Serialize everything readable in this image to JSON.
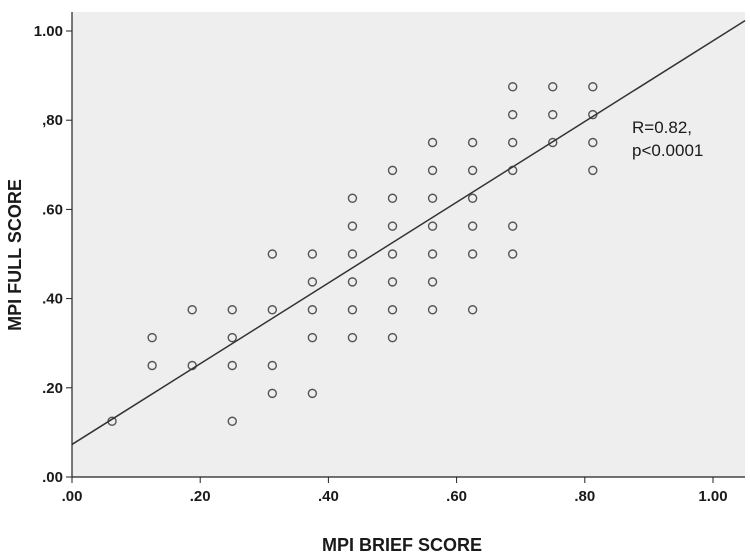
{
  "chart_data": {
    "type": "scatter",
    "title": "",
    "xlabel": "MPI BRIEF SCORE",
    "ylabel": "MPI FULL  SCORE",
    "xlim": [
      0,
      1.05
    ],
    "ylim": [
      0,
      1.0
    ],
    "x_ticks": [
      {
        "value": 0.0,
        "label": ".00"
      },
      {
        "value": 0.2,
        "label": ".20"
      },
      {
        "value": 0.4,
        "label": ".40"
      },
      {
        "value": 0.6,
        "label": ".60"
      },
      {
        "value": 0.8,
        "label": ".80"
      },
      {
        "value": 1.0,
        "label": "1.00"
      }
    ],
    "y_ticks": [
      {
        "value": 0.0,
        "label": ".00"
      },
      {
        "value": 0.2,
        "label": ".20"
      },
      {
        "value": 0.4,
        "label": ".40"
      },
      {
        "value": 0.6,
        "label": ".60"
      },
      {
        "value": 0.8,
        "label": ",80"
      },
      {
        "value": 1.0,
        "label": "1.00"
      }
    ],
    "grid": false,
    "legend": "none",
    "points": [
      {
        "x": 0.0625,
        "y": 0.125
      },
      {
        "x": 0.125,
        "y": 0.3125
      },
      {
        "x": 0.125,
        "y": 0.25
      },
      {
        "x": 0.1875,
        "y": 0.375
      },
      {
        "x": 0.1875,
        "y": 0.25
      },
      {
        "x": 0.25,
        "y": 0.375
      },
      {
        "x": 0.25,
        "y": 0.3125
      },
      {
        "x": 0.25,
        "y": 0.25
      },
      {
        "x": 0.25,
        "y": 0.125
      },
      {
        "x": 0.3125,
        "y": 0.5
      },
      {
        "x": 0.3125,
        "y": 0.375
      },
      {
        "x": 0.3125,
        "y": 0.25
      },
      {
        "x": 0.3125,
        "y": 0.1875
      },
      {
        "x": 0.375,
        "y": 0.5
      },
      {
        "x": 0.375,
        "y": 0.4375
      },
      {
        "x": 0.375,
        "y": 0.375
      },
      {
        "x": 0.375,
        "y": 0.3125
      },
      {
        "x": 0.375,
        "y": 0.1875
      },
      {
        "x": 0.4375,
        "y": 0.625
      },
      {
        "x": 0.4375,
        "y": 0.5625
      },
      {
        "x": 0.4375,
        "y": 0.5
      },
      {
        "x": 0.4375,
        "y": 0.4375
      },
      {
        "x": 0.4375,
        "y": 0.375
      },
      {
        "x": 0.4375,
        "y": 0.3125
      },
      {
        "x": 0.5,
        "y": 0.6875
      },
      {
        "x": 0.5,
        "y": 0.625
      },
      {
        "x": 0.5,
        "y": 0.5625
      },
      {
        "x": 0.5,
        "y": 0.5
      },
      {
        "x": 0.5,
        "y": 0.4375
      },
      {
        "x": 0.5,
        "y": 0.375
      },
      {
        "x": 0.5,
        "y": 0.3125
      },
      {
        "x": 0.5625,
        "y": 0.75
      },
      {
        "x": 0.5625,
        "y": 0.6875
      },
      {
        "x": 0.5625,
        "y": 0.625
      },
      {
        "x": 0.5625,
        "y": 0.5625
      },
      {
        "x": 0.5625,
        "y": 0.5
      },
      {
        "x": 0.5625,
        "y": 0.4375
      },
      {
        "x": 0.5625,
        "y": 0.375
      },
      {
        "x": 0.625,
        "y": 0.75
      },
      {
        "x": 0.625,
        "y": 0.6875
      },
      {
        "x": 0.625,
        "y": 0.625
      },
      {
        "x": 0.625,
        "y": 0.5625
      },
      {
        "x": 0.625,
        "y": 0.5
      },
      {
        "x": 0.625,
        "y": 0.375
      },
      {
        "x": 0.6875,
        "y": 0.875
      },
      {
        "x": 0.6875,
        "y": 0.8125
      },
      {
        "x": 0.6875,
        "y": 0.75
      },
      {
        "x": 0.6875,
        "y": 0.6875
      },
      {
        "x": 0.6875,
        "y": 0.5625
      },
      {
        "x": 0.6875,
        "y": 0.5
      },
      {
        "x": 0.75,
        "y": 0.875
      },
      {
        "x": 0.75,
        "y": 0.8125
      },
      {
        "x": 0.75,
        "y": 0.75
      },
      {
        "x": 0.8125,
        "y": 0.875
      },
      {
        "x": 0.8125,
        "y": 0.8125
      },
      {
        "x": 0.8125,
        "y": 0.75
      },
      {
        "x": 0.8125,
        "y": 0.6875
      }
    ],
    "fit_line": {
      "intercept": 0.073,
      "slope": 0.905
    },
    "annotation_lines": [
      "R=0.82,",
      "p<0.0001"
    ],
    "colors": {
      "plot_background": "#eeeeee",
      "marker": "#555555",
      "line": "#333333",
      "axis": "#222222"
    }
  }
}
